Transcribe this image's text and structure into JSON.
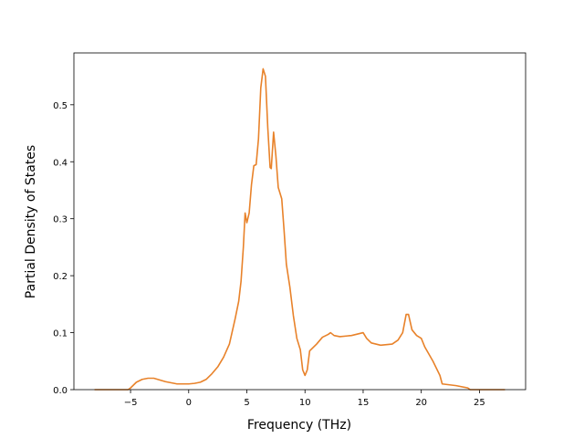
{
  "chart_data": {
    "type": "line",
    "xlabel": "Frequency (THz)",
    "ylabel": "Partial Density of States",
    "color": "#e8822a",
    "x": [
      -8.1,
      -5.2,
      -5,
      -4.5,
      -4,
      -3.5,
      -3,
      -2.5,
      -2,
      -1.5,
      -1,
      0,
      0.5,
      1,
      1.5,
      2,
      2.5,
      3,
      3.5,
      4,
      4.3,
      4.5,
      4.7,
      4.85,
      5.0,
      5.2,
      5.4,
      5.6,
      5.8,
      6.0,
      6.2,
      6.4,
      6.6,
      6.8,
      7.0,
      7.1,
      7.3,
      7.5,
      7.7,
      8.0,
      8.2,
      8.4,
      8.7,
      9.0,
      9.3,
      9.6,
      9.8,
      10.0,
      10.2,
      10.4,
      11,
      11.5,
      12,
      12.2,
      12.5,
      13,
      14,
      15,
      15.3,
      15.7,
      16.5,
      17.5,
      18,
      18.4,
      18.7,
      18.9,
      19.2,
      19.6,
      20,
      20.3,
      21,
      21.6,
      21.8,
      23,
      24,
      24.2,
      27.2
    ],
    "values": [
      0,
      0,
      0.003,
      0.013,
      0.018,
      0.02,
      0.02,
      0.017,
      0.014,
      0.012,
      0.01,
      0.01,
      0.011,
      0.013,
      0.018,
      0.028,
      0.04,
      0.057,
      0.08,
      0.125,
      0.155,
      0.19,
      0.25,
      0.31,
      0.293,
      0.31,
      0.36,
      0.393,
      0.395,
      0.44,
      0.53,
      0.563,
      0.55,
      0.46,
      0.39,
      0.388,
      0.452,
      0.41,
      0.355,
      0.335,
      0.28,
      0.22,
      0.18,
      0.13,
      0.09,
      0.07,
      0.035,
      0.025,
      0.035,
      0.068,
      0.08,
      0.092,
      0.097,
      0.1,
      0.095,
      0.093,
      0.095,
      0.1,
      0.09,
      0.082,
      0.078,
      0.08,
      0.087,
      0.1,
      0.132,
      0.132,
      0.105,
      0.095,
      0.09,
      0.075,
      0.05,
      0.025,
      0.01,
      0.007,
      0.003,
      0,
      0
    ],
    "xlim": [
      -9.87,
      28.97
    ],
    "xticks": [
      {
        "value": -5,
        "label": "−5"
      },
      0,
      5,
      10,
      15,
      20,
      25
    ],
    "ylim": [
      0,
      0.591
    ],
    "yticks": [
      {
        "value": 0,
        "label": "0.0"
      },
      0.1,
      0.2,
      0.3,
      0.4,
      0.5
    ]
  }
}
